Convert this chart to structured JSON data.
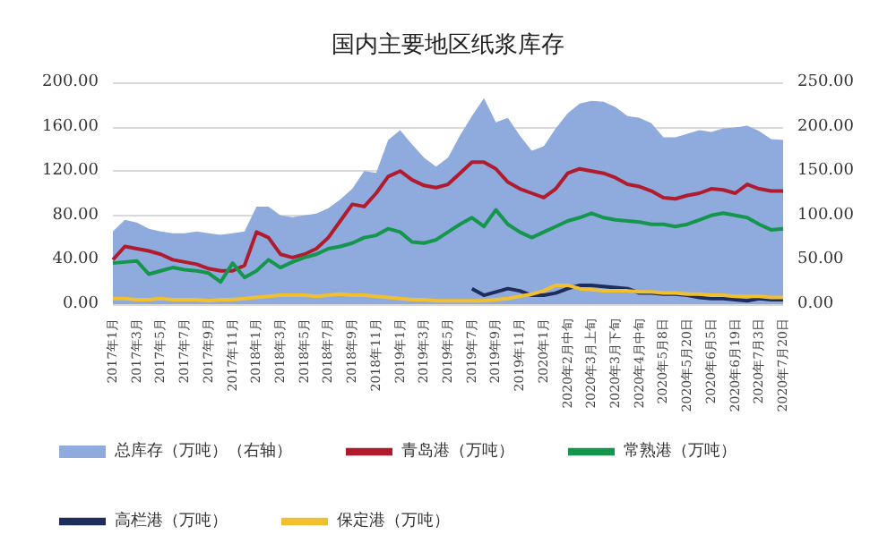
{
  "chart_data": {
    "type": "line",
    "title": "国内主要地区纸浆库存",
    "categories": [
      "2017年1月",
      null,
      "2017年3月",
      null,
      "2017年5月",
      null,
      "2017年7月",
      null,
      "2017年9月",
      null,
      "2017年11月",
      null,
      "2018年1月",
      null,
      "2018年3月",
      null,
      "2018年5月",
      null,
      "2018年7月",
      null,
      "2018年9月",
      null,
      "2018年11月",
      null,
      "2019年1月",
      null,
      "2019年3月",
      null,
      "2019年5月",
      null,
      "2019年7月",
      null,
      "2019年9月",
      null,
      "2019年11月",
      null,
      "2020年1月",
      null,
      "2020年2月中旬",
      null,
      "2020年3月上旬",
      null,
      "2020年3月下旬",
      null,
      "2020年4月中旬",
      null,
      "2020年5月8日",
      null,
      "2020年5月20日",
      null,
      "2020年6月5日",
      null,
      "2020年6月19日",
      null,
      "2020年7月3日",
      null,
      "2020年7月20日"
    ],
    "series": [
      {
        "name": "总库存（万吨）（右轴）",
        "type": "area",
        "axis": "y2",
        "color": "#8faadc",
        "values": [
          82,
          95,
          92,
          85,
          82,
          80,
          80,
          82,
          80,
          78,
          80,
          82,
          110,
          110,
          100,
          98,
          100,
          102,
          108,
          118,
          130,
          150,
          148,
          185,
          196,
          180,
          165,
          155,
          165,
          190,
          212,
          232,
          205,
          210,
          190,
          173,
          178,
          198,
          215,
          226,
          229,
          228,
          222,
          212,
          210,
          204,
          188,
          188,
          192,
          196,
          194,
          198,
          199,
          201,
          195,
          186,
          185
        ]
      },
      {
        "name": "青岛港（万吨）",
        "color": "#b01c2e",
        "values": [
          40,
          52,
          50,
          48,
          45,
          40,
          38,
          36,
          32,
          30,
          30,
          35,
          65,
          60,
          45,
          42,
          45,
          50,
          60,
          75,
          90,
          88,
          100,
          115,
          120,
          112,
          107,
          105,
          108,
          118,
          128,
          128,
          122,
          110,
          104,
          100,
          96,
          104,
          118,
          122,
          120,
          118,
          114,
          108,
          106,
          102,
          96,
          95,
          98,
          100,
          104,
          103,
          100,
          108,
          104,
          102,
          102
        ]
      },
      {
        "name": "常熟港（万吨）",
        "color": "#14964c",
        "values": [
          37,
          38,
          39,
          27,
          30,
          33,
          31,
          30,
          28,
          20,
          37,
          24,
          30,
          40,
          33,
          38,
          42,
          45,
          50,
          52,
          55,
          60,
          62,
          68,
          65,
          56,
          55,
          58,
          65,
          72,
          78,
          70,
          85,
          72,
          65,
          60,
          65,
          70,
          75,
          78,
          82,
          78,
          76,
          75,
          74,
          72,
          72,
          70,
          72,
          76,
          80,
          82,
          80,
          78,
          72,
          67,
          68
        ]
      },
      {
        "name": "高栏港（万吨）",
        "color": "#1f2d5c",
        "values": [
          null,
          null,
          null,
          null,
          null,
          null,
          null,
          null,
          null,
          null,
          null,
          null,
          null,
          null,
          null,
          null,
          null,
          null,
          null,
          null,
          null,
          null,
          null,
          null,
          null,
          null,
          null,
          null,
          null,
          null,
          14,
          8,
          11,
          14,
          12,
          8,
          8,
          10,
          14,
          17,
          17,
          16,
          15,
          14,
          10,
          10,
          9,
          9,
          8,
          6,
          5,
          5,
          4,
          3,
          5,
          4,
          4
        ]
      },
      {
        "name": "保定港（万吨）",
        "color": "#f0c030",
        "values": [
          5,
          5,
          4,
          4,
          5,
          4,
          4,
          4,
          3,
          4,
          4,
          5,
          6,
          7,
          8,
          8,
          8,
          7,
          8,
          9,
          8,
          8,
          7,
          6,
          5,
          4,
          4,
          3,
          3,
          3,
          3,
          3,
          4,
          5,
          7,
          9,
          12,
          17,
          17,
          14,
          13,
          12,
          12,
          12,
          11,
          11,
          10,
          10,
          9,
          9,
          8,
          8,
          7,
          7,
          7,
          6,
          6
        ]
      }
    ],
    "ylim": [
      0,
      200
    ],
    "yticks": [
      {
        "value": 0,
        "label": "0.00"
      },
      {
        "value": 40,
        "label": "40.00"
      },
      {
        "value": 80,
        "label": "80.00"
      },
      {
        "value": 120,
        "label": "120.00"
      },
      {
        "value": 160,
        "label": "160.00"
      },
      {
        "value": 200,
        "label": "200.00"
      }
    ],
    "y2lim": [
      0,
      250
    ],
    "y2ticks": [
      {
        "value": 0,
        "label": "0.00"
      },
      {
        "value": 50,
        "label": "50.00"
      },
      {
        "value": 100,
        "label": "100.00"
      },
      {
        "value": 150,
        "label": "150.00"
      },
      {
        "value": 200,
        "label": "200.00"
      },
      {
        "value": 250,
        "label": "250.00"
      }
    ],
    "grid": "y",
    "legend": "bottom",
    "marker": "none",
    "line_style": "solid"
  }
}
